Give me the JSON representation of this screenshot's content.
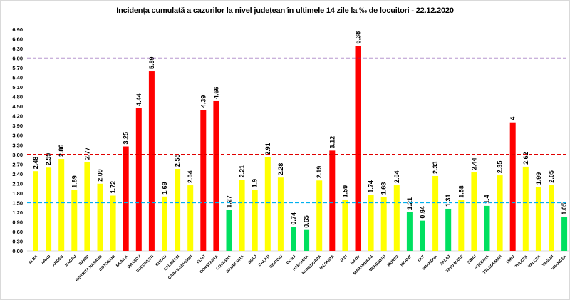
{
  "chart_data": {
    "type": "bar",
    "title": "Incidența cumulată a cazurilor la nivel județean în ultimele 14 zile la ‰ de locuitori - 22.12.2020",
    "xlabel": "",
    "ylabel": "",
    "ylim": [
      0,
      6.9
    ],
    "ytick_step": 0.3,
    "grid": false,
    "categories": [
      "ALBA",
      "ARAD",
      "ARGES",
      "BACAU",
      "BIHOR",
      "BISTRITA NASAUD",
      "BOTOSANI",
      "BRAILA",
      "BRASOV",
      "BUCURESTI",
      "BUZAU",
      "CALARASI",
      "CARAS-SEVERIN",
      "CLUJ",
      "CONSTANTA",
      "COVASNA",
      "DAMBOVITA",
      "DOLJ",
      "GALATI",
      "GIURGIU",
      "GORJ",
      "HARGHITA",
      "HUNEDOARA",
      "IALOMITA",
      "IASI",
      "ILFOV",
      "MARAMURES",
      "MEHEDINTI",
      "MURES",
      "NEAMT",
      "OLT",
      "PRAHOVA",
      "SALAJ",
      "SATU MARE",
      "SIBIU",
      "SUCEAVA",
      "TELEORMAN",
      "TIMIS",
      "TULCEA",
      "VALCEA",
      "VASLUI",
      "VRANCEA"
    ],
    "values": [
      2.48,
      2.59,
      2.86,
      1.89,
      2.77,
      2.09,
      1.72,
      3.25,
      4.44,
      5.59,
      1.69,
      2.55,
      2.04,
      4.39,
      4.66,
      1.27,
      2.21,
      1.9,
      2.91,
      2.28,
      0.74,
      0.65,
      2.19,
      3.12,
      1.59,
      6.38,
      1.74,
      1.68,
      2.04,
      1.21,
      0.94,
      2.33,
      1.31,
      1.58,
      2.44,
      1.4,
      2.35,
      4,
      2.62,
      1.99,
      2.05,
      1.05
    ],
    "value_labels": [
      "2.48",
      "2.59",
      "2.86",
      "1.89",
      "2.77",
      "2.09",
      "1.72",
      "3.25",
      "4.44",
      "5.59",
      "1.69",
      "2.55",
      "2.04",
      "4.39",
      "4.66",
      "1.27",
      "2.21",
      "1.9",
      "2.91",
      "2.28",
      "0.74",
      "0.65",
      "2.19",
      "3.12",
      "1.59",
      "6.38",
      "1.74",
      "1.68",
      "2.04",
      "1.21",
      "0.94",
      "2.33",
      "1.31",
      "1.58",
      "2.44",
      "1.4",
      "2.35",
      "4",
      "2.62",
      "1.99",
      "2.05",
      "1.05"
    ],
    "thresholds": [
      {
        "value": 1.5,
        "color": "#00b0f0"
      },
      {
        "value": 3.0,
        "color": "#e00000"
      },
      {
        "value": 6.0,
        "color": "#7030a0"
      }
    ],
    "colors": {
      "low": "#00e060",
      "medium": "#ffff00",
      "high": "#ff0000"
    }
  }
}
